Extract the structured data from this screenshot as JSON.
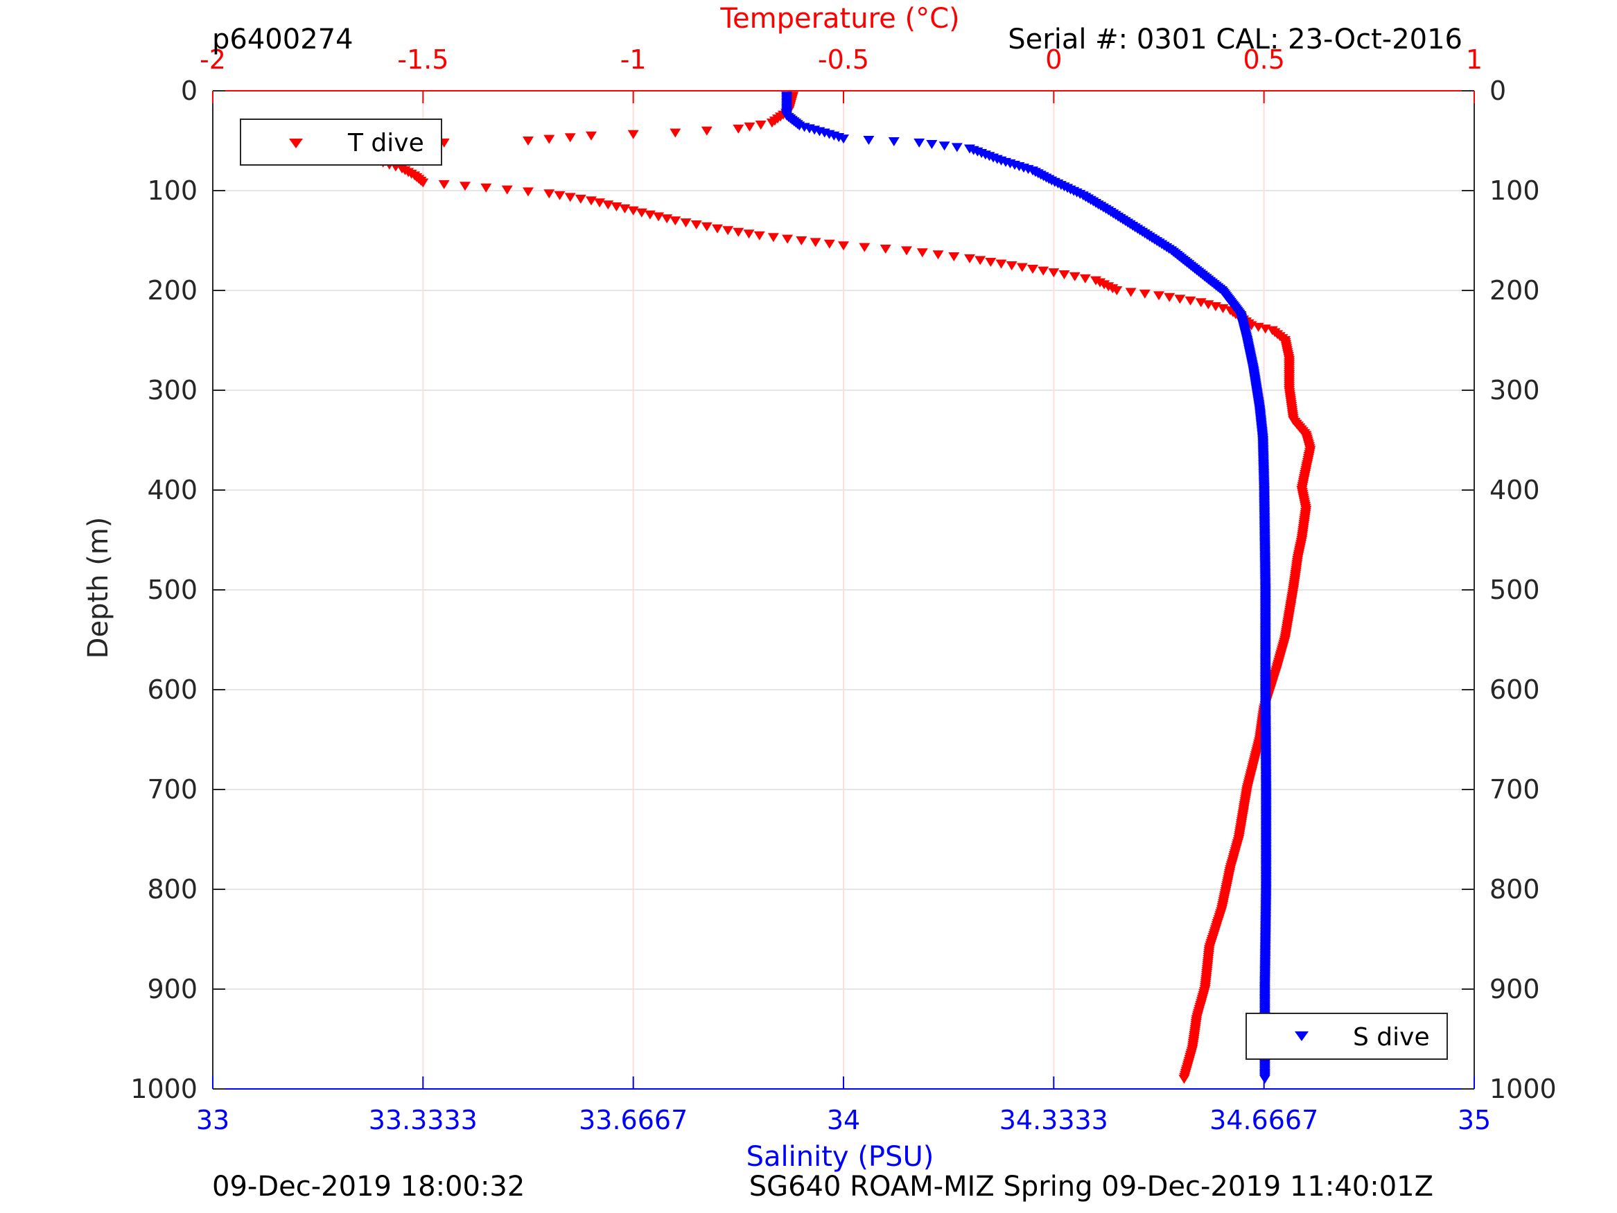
{
  "header": {
    "left": "p6400274",
    "right": "Serial #: 0301  CAL: 23-Oct-2016"
  },
  "footer": {
    "left": "09-Dec-2019 18:00:32",
    "right": "SG640 ROAM-MIZ Spring 09-Dec-2019 11:40:01Z"
  },
  "legend": {
    "temperature": "T dive",
    "salinity": "S dive"
  },
  "colors": {
    "temperature": "#ff0000",
    "salinity": "#0000ff",
    "axis": "#262626",
    "grid": "#e6e6e6",
    "temp_grid": "#ffdddd"
  },
  "chart_data": {
    "type": "scatter",
    "marker": "triangle-down",
    "grid": true,
    "y_axis": {
      "label": "Depth (m)",
      "lim": [
        0,
        1000
      ],
      "reversed": true,
      "ticks": [
        "0",
        "100",
        "200",
        "300",
        "400",
        "500",
        "600",
        "700",
        "800",
        "900",
        "1000"
      ],
      "tick_values": [
        0,
        100,
        200,
        300,
        400,
        500,
        600,
        700,
        800,
        900,
        1000
      ]
    },
    "temperature_axis": {
      "label": "Temperature (°C)",
      "position": "top",
      "lim": [
        -2,
        1
      ],
      "ticks": [
        "-2",
        "-1.5",
        "-1",
        "-0.5",
        "0",
        "0.5",
        "1"
      ],
      "tick_values": [
        -2,
        -1.5,
        -1,
        -0.5,
        0,
        0.5,
        1
      ]
    },
    "salinity_axis": {
      "label": "Salinity (PSU)",
      "position": "bottom",
      "lim": [
        33,
        35
      ],
      "ticks": [
        "33",
        "33.3333",
        "33.6667",
        "34",
        "34.3333",
        "34.6667",
        "35"
      ],
      "tick_values": [
        33,
        33.3333,
        33.6667,
        34,
        34.3333,
        34.6667,
        35
      ]
    },
    "series": [
      {
        "name": "T dive",
        "axis": "temperature",
        "legend_position": "top-left",
        "points": [
          [
            -0.62,
            5
          ],
          [
            -0.63,
            20
          ],
          [
            -0.67,
            32
          ],
          [
            -0.75,
            38
          ],
          [
            -0.9,
            42
          ],
          [
            -1.1,
            45
          ],
          [
            -1.25,
            50
          ],
          [
            -1.45,
            52
          ],
          [
            -1.55,
            55
          ],
          [
            -1.6,
            60
          ],
          [
            -1.61,
            70
          ],
          [
            -1.55,
            78
          ],
          [
            -1.52,
            85
          ],
          [
            -1.5,
            92
          ],
          [
            -1.35,
            97
          ],
          [
            -1.2,
            103
          ],
          [
            -1.1,
            110
          ],
          [
            -1.0,
            120
          ],
          [
            -0.9,
            130
          ],
          [
            -0.8,
            138
          ],
          [
            -0.7,
            145
          ],
          [
            -0.6,
            150
          ],
          [
            -0.5,
            155
          ],
          [
            -0.35,
            160
          ],
          [
            -0.2,
            168
          ],
          [
            -0.1,
            175
          ],
          [
            0.0,
            182
          ],
          [
            0.1,
            190
          ],
          [
            0.15,
            200
          ],
          [
            0.25,
            205
          ],
          [
            0.35,
            212
          ],
          [
            0.42,
            220
          ],
          [
            0.47,
            235
          ],
          [
            0.52,
            240
          ],
          [
            0.55,
            250
          ],
          [
            0.56,
            270
          ],
          [
            0.56,
            300
          ],
          [
            0.57,
            330
          ],
          [
            0.6,
            345
          ],
          [
            0.61,
            360
          ],
          [
            0.6,
            380
          ],
          [
            0.59,
            400
          ],
          [
            0.6,
            420
          ],
          [
            0.59,
            450
          ],
          [
            0.58,
            470
          ],
          [
            0.57,
            500
          ],
          [
            0.55,
            550
          ],
          [
            0.53,
            580
          ],
          [
            0.5,
            620
          ],
          [
            0.49,
            650
          ],
          [
            0.46,
            700
          ],
          [
            0.44,
            750
          ],
          [
            0.42,
            780
          ],
          [
            0.4,
            820
          ],
          [
            0.37,
            860
          ],
          [
            0.36,
            900
          ],
          [
            0.34,
            930
          ],
          [
            0.33,
            960
          ],
          [
            0.31,
            990
          ]
        ]
      },
      {
        "name": "S dive",
        "axis": "salinity",
        "legend_position": "bottom-right",
        "points": [
          [
            33.91,
            5
          ],
          [
            33.91,
            25
          ],
          [
            33.93,
            35
          ],
          [
            33.97,
            42
          ],
          [
            34.0,
            48
          ],
          [
            34.12,
            52
          ],
          [
            34.2,
            58
          ],
          [
            34.25,
            70
          ],
          [
            34.3,
            80
          ],
          [
            34.33,
            90
          ],
          [
            34.38,
            105
          ],
          [
            34.42,
            120
          ],
          [
            34.47,
            140
          ],
          [
            34.52,
            160
          ],
          [
            34.56,
            180
          ],
          [
            34.6,
            200
          ],
          [
            34.63,
            225
          ],
          [
            34.64,
            250
          ],
          [
            34.65,
            280
          ],
          [
            34.66,
            320
          ],
          [
            34.665,
            350
          ],
          [
            34.667,
            400
          ],
          [
            34.669,
            500
          ],
          [
            34.669,
            600
          ],
          [
            34.67,
            700
          ],
          [
            34.67,
            800
          ],
          [
            34.668,
            900
          ],
          [
            34.668,
            990
          ]
        ]
      }
    ]
  }
}
